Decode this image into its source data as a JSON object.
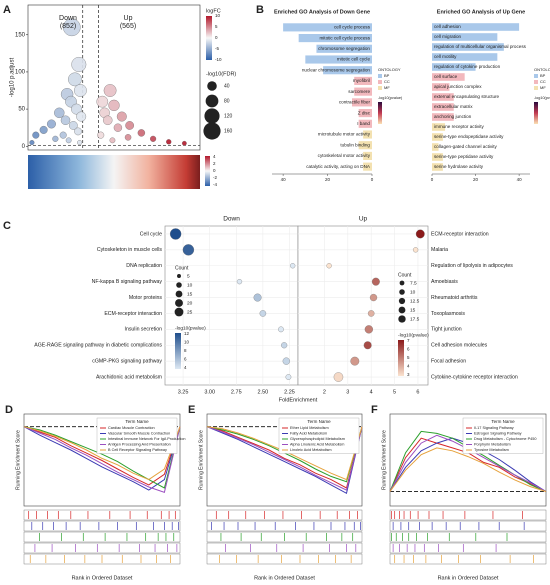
{
  "chart_data": [
    {
      "type": "scatter",
      "panel": "A",
      "ylabel": "-log10 p.adjust",
      "xlim": [
        -8,
        14
      ],
      "ylim": [
        -5,
        190
      ],
      "yticks": [
        0,
        50,
        100,
        150
      ],
      "vlines": [
        -1,
        1
      ],
      "hline": 1.3,
      "labels": [
        "Down",
        "(852)",
        "Up",
        "(565)"
      ],
      "x": [
        -2.4,
        -1.5,
        -2,
        -1.3,
        -3,
        -2.5,
        -1.8,
        -4,
        -1.2,
        -3.2,
        -5,
        -2.2,
        -6,
        -1.6,
        -7,
        -3.5,
        -4.5,
        -2.8,
        -7.5,
        -1.4,
        2.5,
        1.5,
        3,
        1.8,
        4,
        2.2,
        5,
        3.5,
        6.5,
        1.3,
        8,
        4.8,
        10,
        2.8,
        12
      ],
      "y": [
        160,
        110,
        90,
        75,
        70,
        60,
        50,
        45,
        40,
        35,
        30,
        28,
        22,
        20,
        15,
        15,
        10,
        8,
        5,
        5,
        75,
        60,
        55,
        45,
        40,
        35,
        28,
        25,
        18,
        15,
        10,
        12,
        6,
        8,
        4
      ],
      "color_title": "logFC",
      "color_ticks": [
        10,
        5,
        0,
        -5,
        -10
      ],
      "size_title": "-log10(FDR)",
      "size_values": [
        40,
        80,
        120,
        160
      ],
      "heatmap_ticks": [
        4,
        2,
        0,
        -2,
        -4
      ]
    },
    {
      "type": "bar",
      "panel": "B",
      "title": "Enriched GO Analysis of Down Gene",
      "categories": [
        "cell cycle process",
        "mitotic cell cycle process",
        "chromosome segregation",
        "mitotic cell cycle",
        "nuclear chromosome segregation",
        "myofibril",
        "sarcomere",
        "contractile fiber",
        "Z disc",
        "I band",
        "microtubule motor activity",
        "tubulin binding",
        "cytoskeletal motor activity",
        "catalytic activity, acting on DNA"
      ],
      "values": [
        40,
        33,
        25,
        30,
        22,
        8,
        8,
        9,
        6,
        6,
        4,
        6,
        4,
        4
      ],
      "ontology": [
        "BP",
        "BP",
        "BP",
        "BP",
        "BP",
        "CC",
        "CC",
        "CC",
        "CC",
        "CC",
        "MF",
        "MF",
        "MF",
        "MF"
      ],
      "xlim": [
        45,
        0
      ],
      "xticks": [
        40,
        20,
        0
      ],
      "ontology_title": "ONTOLOGY",
      "ontologies": [
        "BP",
        "CC",
        "MF"
      ],
      "ontology_colors": [
        "#a9c8ea",
        "#f2b8bd",
        "#f3e1b0"
      ],
      "colorbar_title": "-log10(pvalue)"
    },
    {
      "type": "bar",
      "title": "Enriched GO Analysis of Up Gene",
      "categories": [
        "cell adhesion",
        "cell migration",
        "regulation of multicellular organismal process",
        "cell motility",
        "regulation of cytokine production",
        "cell surface",
        "apical junction complex",
        "external encapsulating structure",
        "extracellular matrix",
        "anchoring junction",
        "immune receptor activity",
        "serine-type endopeptidase activity",
        "collagen-gated channel activity",
        "serine-type peptidase activity",
        "serine hydrolase activity"
      ],
      "values": [
        40,
        30,
        33,
        30,
        20,
        15,
        8,
        10,
        10,
        10,
        6,
        5,
        3,
        5,
        5
      ],
      "ontology": [
        "BP",
        "BP",
        "BP",
        "BP",
        "BP",
        "CC",
        "CC",
        "CC",
        "CC",
        "CC",
        "MF",
        "MF",
        "MF",
        "MF",
        "MF"
      ],
      "xlim": [
        0,
        45
      ],
      "xticks": [
        0,
        20,
        40
      ],
      "ontology_title": "ONTOLOGY",
      "ontologies": [
        "BP",
        "CC",
        "MF"
      ],
      "ontology_colors": [
        "#a9c8ea",
        "#f2b8bd",
        "#f3e1b0"
      ],
      "colorbar_title": "-log10(pvalue)"
    },
    {
      "type": "dot",
      "panel": "C",
      "title": "Down",
      "xlabel": "FoldEnrichment",
      "categories": [
        "Cell cycle",
        "Cytoskeleton in muscle cells",
        "DNA replication",
        "NF-kappa B signaling pathway",
        "Motor proteins",
        "ECM-receptor interaction",
        "Insulin secretion",
        "AGE-RAGE signaling pathway in diabetic complications",
        "cGMP-PKG signaling pathway",
        "Arachidonic acid metabolism"
      ],
      "values": [
        3.32,
        3.2,
        2.22,
        2.72,
        2.55,
        2.5,
        2.33,
        2.3,
        2.28,
        2.26
      ],
      "counts": [
        25,
        25,
        5,
        5,
        12,
        8,
        6,
        7,
        10,
        6
      ],
      "pvalues": [
        12,
        11,
        4,
        4,
        6,
        5,
        4,
        5,
        5,
        4
      ],
      "xlim": [
        3.42,
        2.17
      ],
      "xticks": [
        3.25,
        {
          "value": 3,
          "label": "3.00"
        },
        2.75,
        {
          "value": 2.5,
          "label": "2.50"
        },
        2.25
      ],
      "count_title": "Count",
      "count_values": [
        5,
        10,
        15,
        20,
        25
      ],
      "color_title": "-log10(pvalue)",
      "color_ticks": [
        12,
        10,
        8,
        6,
        4
      ],
      "colors": [
        "#dde8f3",
        "#1f4e8c"
      ]
    },
    {
      "type": "dot",
      "title": "Up",
      "categories": [
        "ECM-receptor interaction",
        "Malaria",
        "Regulation of lipolysis in adipocytes",
        "Amoebiasis",
        "Rheumatoid arthritis",
        "Toxoplasmosis",
        "Tight junction",
        "Cell adhesion molecules",
        "Focal adhesion",
        "Cytokine-cytokine receptor interaction"
      ],
      "values": [
        6.1,
        5.9,
        2.2,
        4.2,
        4.1,
        4.0,
        3.9,
        3.85,
        3.3,
        2.6
      ],
      "counts": [
        15,
        5,
        5,
        12,
        10,
        8,
        13,
        12,
        15,
        17.5
      ],
      "pvalues": [
        7.2,
        3,
        3,
        5.5,
        4.5,
        4,
        5,
        6,
        4.5,
        3.2
      ],
      "xlim": [
        0.87,
        6.43
      ],
      "xticks": [
        2,
        3,
        4,
        5,
        6
      ],
      "count_title": "Count",
      "count_values": [
        7.5,
        10,
        12.5,
        15,
        17.5
      ],
      "color_title": "-log10(pvalue)",
      "color_ticks": [
        7,
        6,
        5,
        4,
        3
      ],
      "colors": [
        "#fbe3cf",
        "#8b1a1a"
      ]
    },
    {
      "type": "line",
      "panel": "D",
      "ylabel": "Running Enrichment Score",
      "xlabel": "Rank in Ordered Dataset",
      "legend_title": "Term Name",
      "x": [
        0,
        10,
        20,
        30,
        40,
        50,
        60,
        70,
        80,
        90,
        100
      ],
      "ylim": [
        -0.75,
        0.12
      ],
      "series": [
        {
          "name": "Cardiac Muscle Contraction",
          "color": "#d62728",
          "values": [
            0,
            -0.05,
            -0.1,
            -0.18,
            -0.25,
            -0.32,
            -0.4,
            -0.48,
            -0.55,
            -0.45,
            0
          ],
          "hits": [
            3,
            8,
            15,
            22,
            30,
            41,
            55,
            68,
            79,
            88,
            93,
            97
          ]
        },
        {
          "name": "Vascular Smooth Muscle Contraction",
          "color": "#3b3bb3",
          "values": [
            0,
            -0.08,
            -0.15,
            -0.22,
            -0.3,
            -0.38,
            -0.45,
            -0.52,
            -0.6,
            -0.5,
            0
          ],
          "hits": [
            5,
            12,
            19,
            27,
            36,
            48,
            60,
            72,
            83,
            90,
            95,
            99
          ]
        },
        {
          "name": "Intestinal Immune Network For IgA Production",
          "color": "#2ca02c",
          "values": [
            0,
            -0.03,
            -0.08,
            -0.14,
            -0.2,
            -0.26,
            -0.33,
            -0.42,
            -0.5,
            -0.58,
            0
          ],
          "hits": [
            10,
            24,
            38,
            52,
            66,
            78,
            86,
            91,
            96
          ]
        },
        {
          "name": "Antigen Processing And Presentation",
          "color": "#9b4fc0",
          "values": [
            0,
            -0.06,
            -0.12,
            -0.2,
            -0.27,
            -0.35,
            -0.43,
            -0.5,
            -0.57,
            -0.62,
            0
          ],
          "hits": [
            7,
            18,
            33,
            47,
            61,
            74,
            84,
            92,
            98
          ]
        },
        {
          "name": "B Cell Receptor Signaling Pathway",
          "color": "#e6a23c",
          "values": [
            0,
            -0.04,
            -0.09,
            -0.15,
            -0.22,
            -0.3,
            -0.36,
            -0.44,
            -0.5,
            -0.4,
            0
          ],
          "hits": [
            4,
            14,
            26,
            39,
            50,
            63,
            75,
            85,
            94
          ]
        }
      ]
    },
    {
      "type": "line",
      "panel": "E",
      "ylabel": "Running Enrichment Score",
      "xlabel": "Rank in Ordered Dataset",
      "legend_title": "Term Name",
      "x": [
        0,
        10,
        20,
        30,
        40,
        50,
        60,
        70,
        80,
        90,
        100
      ],
      "ylim": [
        -0.75,
        0.12
      ],
      "series": [
        {
          "name": "Ether Lipid Metabolism",
          "color": "#d62728",
          "values": [
            0,
            -0.04,
            -0.1,
            -0.16,
            -0.22,
            -0.3,
            -0.36,
            -0.44,
            -0.5,
            -0.58,
            0
          ],
          "hits": [
            6,
            14,
            25,
            37,
            49,
            61,
            73,
            84,
            92,
            97
          ]
        },
        {
          "name": "Fatty Acid Metabolism",
          "color": "#3b3bb3",
          "values": [
            0,
            -0.06,
            -0.12,
            -0.19,
            -0.26,
            -0.33,
            -0.4,
            -0.47,
            -0.55,
            -0.63,
            0
          ],
          "hits": [
            3,
            11,
            20,
            31,
            44,
            57,
            69,
            80,
            89,
            95,
            99
          ]
        },
        {
          "name": "Glycerophospholipid Metabolism",
          "color": "#2ca02c",
          "values": [
            0,
            -0.03,
            -0.07,
            -0.12,
            -0.18,
            -0.25,
            -0.32,
            -0.4,
            -0.47,
            -0.52,
            0
          ],
          "hits": [
            9,
            22,
            35,
            50,
            64,
            77,
            87,
            94
          ]
        },
        {
          "name": "Alpha Linolenic Acid Metabolism",
          "color": "#9b4fc0",
          "values": [
            0,
            -0.05,
            -0.11,
            -0.17,
            -0.24,
            -0.31,
            -0.38,
            -0.46,
            -0.53,
            -0.6,
            0
          ],
          "hits": [
            12,
            28,
            45,
            62,
            79,
            90,
            96
          ]
        },
        {
          "name": "Linoleic Acid Metabolism",
          "color": "#e6a23c",
          "values": [
            0,
            -0.02,
            -0.06,
            -0.11,
            -0.17,
            -0.23,
            -0.3,
            -0.37,
            -0.44,
            -0.5,
            0
          ],
          "hits": [
            8,
            19,
            33,
            48,
            60,
            72,
            83,
            93
          ]
        }
      ]
    },
    {
      "type": "line",
      "panel": "F",
      "ylabel": "Running Enrichment Score",
      "xlabel": "Rank in Ordered Dataset",
      "legend_title": "Term Name",
      "x": [
        0,
        10,
        20,
        30,
        40,
        50,
        60,
        70,
        80,
        90,
        100
      ],
      "ylim": [
        -0.15,
        0.8
      ],
      "series": [
        {
          "name": "Il-17 Signaling Pathway",
          "color": "#d62728",
          "values": [
            0,
            0.35,
            0.55,
            0.5,
            0.45,
            0.4,
            0.3,
            0.25,
            0.15,
            0.08,
            0
          ],
          "hits": [
            1,
            3,
            6,
            9,
            13,
            18,
            25,
            34,
            48,
            66,
            85
          ]
        },
        {
          "name": "Estrogen Signaling Pathway",
          "color": "#3b3bb3",
          "values": [
            0,
            0.25,
            0.42,
            0.5,
            0.55,
            0.5,
            0.42,
            0.33,
            0.22,
            0.1,
            0
          ],
          "hits": [
            2,
            7,
            12,
            19,
            27,
            36,
            45,
            57,
            70,
            86
          ]
        },
        {
          "name": "Drug Metabolism - Cytochrome P450",
          "color": "#2ca02c",
          "values": [
            0,
            0.4,
            0.62,
            0.6,
            0.55,
            0.46,
            0.37,
            0.27,
            0.17,
            0.07,
            0
          ],
          "hits": [
            1,
            4,
            8,
            12,
            17,
            24,
            38,
            55,
            75
          ]
        },
        {
          "name": "Porphyrin Metabolism",
          "color": "#9b4fc0",
          "values": [
            0,
            0.3,
            0.5,
            0.58,
            0.52,
            0.44,
            0.35,
            0.26,
            0.17,
            0.09,
            0
          ],
          "hits": [
            2,
            6,
            11,
            16,
            22,
            31,
            47,
            68
          ]
        },
        {
          "name": "Tyrosine Metabolism",
          "color": "#e6a23c",
          "values": [
            0,
            0.22,
            0.38,
            0.45,
            0.42,
            0.36,
            0.29,
            0.2,
            0.12,
            0.05,
            0
          ],
          "hits": [
            3,
            9,
            15,
            23,
            33,
            44,
            58,
            77,
            92
          ]
        }
      ]
    }
  ]
}
